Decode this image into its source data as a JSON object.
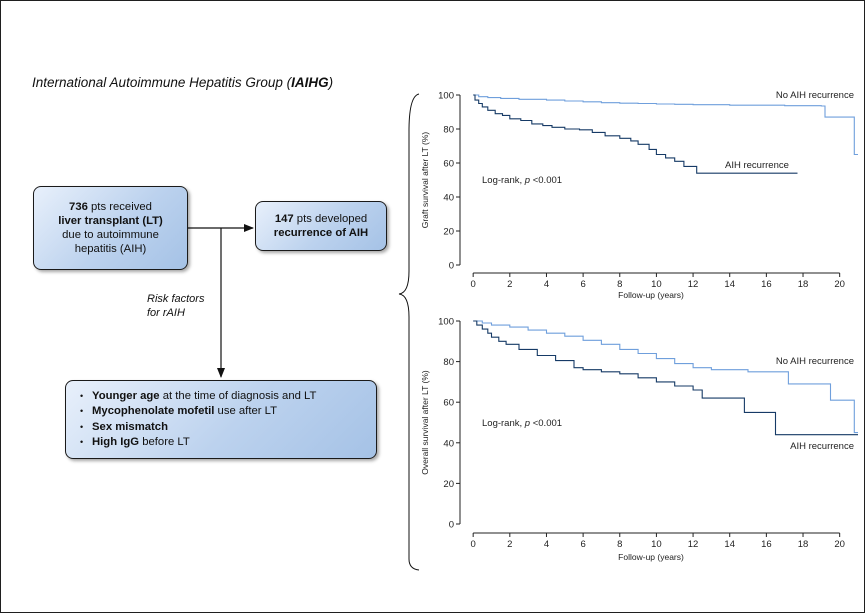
{
  "header": {
    "title_plain": "International Autoimmune Hepatitis Group (",
    "title_bold": "IAIHG",
    "title_end": ")"
  },
  "flow": {
    "transplant": {
      "n": "736",
      "t1": " pts received",
      "t2": "liver transplant (LT)",
      "t3": "due to autoimmune",
      "t4": "hepatitis (AIH)"
    },
    "recurrence": {
      "n": "147",
      "t1": " pts developed",
      "t2": "recurrence of AIH"
    },
    "risk_label": "Risk factors\nfor rAIH",
    "risk_factors": [
      {
        "bold": "Younger age",
        "rest": " at the time of diagnosis and LT"
      },
      {
        "bold": "Mycophenolate mofetil",
        "rest": " use after LT"
      },
      {
        "bold": "Sex mismatch",
        "rest": ""
      },
      {
        "bold": "High IgG",
        "rest": " before LT"
      }
    ]
  },
  "colors": {
    "no_recurrence": "#6f9fdc",
    "recurrence": "#163a66",
    "box_fill": "#bcd2ee"
  },
  "chart_data": [
    {
      "type": "line",
      "xlabel": "Follow-up (years)",
      "ylabel": "Graft survival after LT (%)",
      "xlim": [
        -0.5,
        21
      ],
      "ylim": [
        0,
        100
      ],
      "xticks": [
        0,
        2,
        4,
        6,
        8,
        10,
        12,
        14,
        16,
        18,
        20
      ],
      "yticks": [
        0,
        20,
        40,
        60,
        80,
        100
      ],
      "annotation": {
        "text": "Log-rank, ",
        "p_label": "p",
        "p_value": " <0.001"
      },
      "series": [
        {
          "name": "No AIH recurrence",
          "color": "#6f9fdc",
          "points": [
            [
              0,
              100
            ],
            [
              0.3,
              99
            ],
            [
              0.8,
              98.5
            ],
            [
              1.5,
              98
            ],
            [
              2.5,
              97.5
            ],
            [
              4,
              97
            ],
            [
              5,
              96.5
            ],
            [
              6,
              96
            ],
            [
              7,
              95.5
            ],
            [
              8,
              95.2
            ],
            [
              9,
              95
            ],
            [
              10,
              94.7
            ],
            [
              11,
              94.5
            ],
            [
              12,
              94.3
            ],
            [
              14,
              94
            ],
            [
              17,
              93.7
            ],
            [
              19,
              93.5
            ],
            [
              19.2,
              87
            ],
            [
              20.8,
              87
            ],
            [
              20.8,
              65
            ],
            [
              21,
              65
            ]
          ]
        },
        {
          "name": "AIH recurrence",
          "color": "#163a66",
          "points": [
            [
              0,
              100
            ],
            [
              0.1,
              97
            ],
            [
              0.3,
              95
            ],
            [
              0.5,
              93
            ],
            [
              0.8,
              91
            ],
            [
              1.2,
              89
            ],
            [
              1.6,
              88
            ],
            [
              2,
              86
            ],
            [
              2.6,
              85
            ],
            [
              3.2,
              83
            ],
            [
              3.8,
              82
            ],
            [
              4.3,
              81
            ],
            [
              5,
              80
            ],
            [
              5.8,
              79.5
            ],
            [
              6.5,
              78
            ],
            [
              7.2,
              76
            ],
            [
              8,
              74.5
            ],
            [
              8.6,
              73
            ],
            [
              9,
              71
            ],
            [
              9.6,
              68
            ],
            [
              10,
              65
            ],
            [
              10.5,
              63
            ],
            [
              11,
              61
            ],
            [
              11.5,
              58
            ],
            [
              12.2,
              54
            ],
            [
              13,
              54
            ],
            [
              17.7,
              54
            ]
          ]
        }
      ]
    },
    {
      "type": "line",
      "xlabel": "Follow-up (years)",
      "ylabel": "Overall survival after LT (%)",
      "xlim": [
        -0.5,
        21
      ],
      "ylim": [
        0,
        100
      ],
      "xticks": [
        0,
        2,
        4,
        6,
        8,
        10,
        12,
        14,
        16,
        18,
        20
      ],
      "yticks": [
        0,
        20,
        40,
        60,
        80,
        100
      ],
      "annotation": {
        "text": "Log-rank, ",
        "p_label": "p",
        "p_value": " <0.001"
      },
      "series": [
        {
          "name": "No AIH recurrence",
          "color": "#6f9fdc",
          "points": [
            [
              0,
              100
            ],
            [
              0.5,
              99
            ],
            [
              1,
              98
            ],
            [
              2,
              97
            ],
            [
              3,
              95.5
            ],
            [
              4,
              94
            ],
            [
              5,
              92.5
            ],
            [
              6,
              90.5
            ],
            [
              7,
              88.5
            ],
            [
              8,
              86
            ],
            [
              9,
              84
            ],
            [
              10,
              81.5
            ],
            [
              11,
              79
            ],
            [
              12,
              77
            ],
            [
              13,
              76
            ],
            [
              14,
              76
            ],
            [
              15,
              75
            ],
            [
              16,
              75
            ],
            [
              17,
              75
            ],
            [
              17.2,
              69
            ],
            [
              19,
              69
            ],
            [
              19.5,
              61
            ],
            [
              20.8,
              61
            ],
            [
              20.8,
              45
            ],
            [
              21,
              45
            ]
          ]
        },
        {
          "name": "AIH recurrence",
          "color": "#163a66",
          "points": [
            [
              0,
              100
            ],
            [
              0.2,
              98
            ],
            [
              0.5,
              96
            ],
            [
              0.8,
              94
            ],
            [
              1,
              92
            ],
            [
              1.4,
              90
            ],
            [
              1.8,
              88.5
            ],
            [
              2.5,
              86
            ],
            [
              3.5,
              83
            ],
            [
              4.5,
              80.5
            ],
            [
              5.5,
              77
            ],
            [
              6,
              76
            ],
            [
              7,
              75
            ],
            [
              8,
              74
            ],
            [
              9,
              72
            ],
            [
              10,
              70
            ],
            [
              11,
              68
            ],
            [
              12,
              66
            ],
            [
              12.5,
              62
            ],
            [
              14.5,
              62
            ],
            [
              14.8,
              55
            ],
            [
              16.5,
              55
            ],
            [
              16.5,
              44
            ],
            [
              21,
              44
            ]
          ]
        }
      ]
    }
  ]
}
